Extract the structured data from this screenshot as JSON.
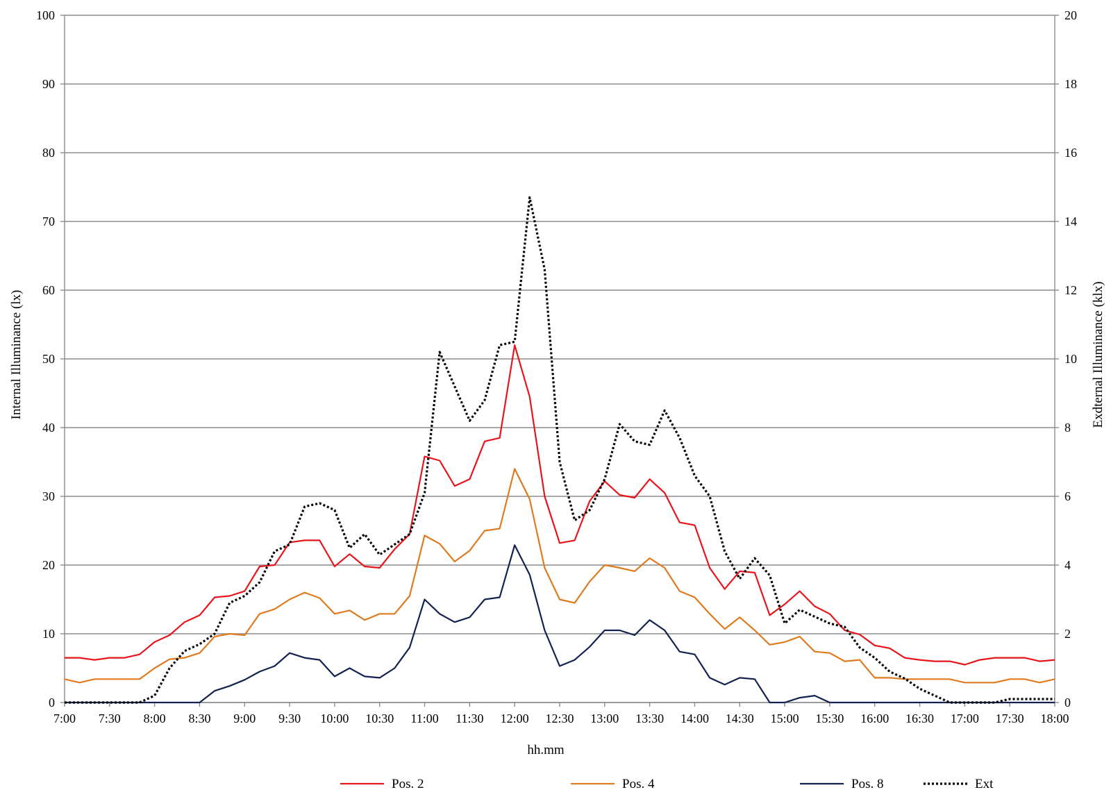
{
  "chart_data": {
    "type": "line",
    "title": "",
    "xlabel": "hh.mm",
    "ylabel": "Internal Illuminance (lx)",
    "y2label": "Exdternal Illuminance (klx)",
    "ylim": [
      0,
      100
    ],
    "y2lim": [
      0,
      20
    ],
    "yticks": [
      "0",
      "10",
      "20",
      "30",
      "40",
      "50",
      "60",
      "70",
      "80",
      "90",
      "100"
    ],
    "y2ticks": [
      "0",
      "2",
      "4",
      "6",
      "8",
      "10",
      "12",
      "14",
      "16",
      "18",
      "20"
    ],
    "x_tick_labels": [
      "7:00",
      "7:30",
      "8:00",
      "8:30",
      "9:00",
      "9:30",
      "10:00",
      "10:30",
      "11:00",
      "11:30",
      "12:00",
      "12:30",
      "13:00",
      "13:30",
      "14:00",
      "14:30",
      "15:00",
      "15:30",
      "16:00",
      "16:30",
      "17:00",
      "17:30",
      "18:00"
    ],
    "x": [
      "7:00",
      "7:10",
      "7:20",
      "7:30",
      "7:40",
      "7:50",
      "8:00",
      "8:10",
      "8:20",
      "8:30",
      "8:40",
      "8:50",
      "9:00",
      "9:10",
      "9:20",
      "9:30",
      "9:40",
      "9:50",
      "10:00",
      "10:10",
      "10:20",
      "10:30",
      "10:40",
      "10:50",
      "11:00",
      "11:10",
      "11:20",
      "11:30",
      "11:40",
      "11:50",
      "12:00",
      "12:10",
      "12:20",
      "12:30",
      "12:40",
      "12:50",
      "13:00",
      "13:10",
      "13:20",
      "13:30",
      "13:40",
      "13:50",
      "14:00",
      "14:10",
      "14:20",
      "14:30",
      "14:40",
      "14:50",
      "15:00",
      "15:10",
      "15:20",
      "15:30",
      "15:40",
      "15:50",
      "16:00",
      "16:10",
      "16:20",
      "16:30",
      "16:40",
      "16:50",
      "17:00",
      "17:10",
      "17:20",
      "17:30",
      "17:40",
      "17:50",
      "18:00"
    ],
    "grid": true,
    "legend_position": "bottom",
    "series": [
      {
        "name": "Pos. 2",
        "axis": "left",
        "color": "#e8141c",
        "style": "solid",
        "values": [
          6.5,
          6.5,
          6.2,
          6.5,
          6.5,
          7.0,
          8.8,
          9.8,
          11.7,
          12.7,
          15.3,
          15.5,
          16.2,
          19.8,
          20.0,
          23.3,
          23.6,
          23.6,
          19.8,
          21.6,
          19.8,
          19.6,
          22.3,
          24.5,
          35.8,
          35.2,
          31.5,
          32.5,
          38.0,
          38.5,
          52.0,
          44.5,
          30.0,
          23.2,
          23.6,
          29.3,
          32.2,
          30.2,
          29.8,
          32.5,
          30.5,
          26.2,
          25.8,
          19.6,
          16.5,
          19.1,
          18.9,
          12.7,
          14.3,
          16.2,
          14.0,
          12.9,
          10.5,
          9.9,
          8.3,
          7.9,
          6.5,
          6.2,
          6.0,
          6.0,
          5.5,
          6.2,
          6.5,
          6.5,
          6.5,
          6.0,
          6.2
        ]
      },
      {
        "name": "Pos. 4",
        "axis": "left",
        "color": "#e07a1f",
        "style": "solid",
        "values": [
          3.4,
          2.9,
          3.4,
          3.4,
          3.4,
          3.4,
          5.0,
          6.3,
          6.5,
          7.2,
          9.6,
          10.0,
          9.8,
          12.9,
          13.6,
          15.0,
          16.0,
          15.2,
          12.9,
          13.4,
          12.0,
          12.9,
          12.9,
          15.5,
          24.3,
          23.1,
          20.5,
          22.1,
          25.0,
          25.3,
          34.0,
          29.6,
          19.6,
          15.0,
          14.5,
          17.6,
          20.0,
          19.6,
          19.1,
          21.0,
          19.6,
          16.2,
          15.3,
          12.9,
          10.7,
          12.4,
          10.5,
          8.4,
          8.8,
          9.6,
          7.4,
          7.2,
          6.0,
          6.2,
          3.6,
          3.6,
          3.4,
          3.4,
          3.4,
          3.4,
          2.9,
          2.9,
          2.9,
          3.4,
          3.4,
          2.9,
          3.4
        ]
      },
      {
        "name": "Pos. 8",
        "axis": "left",
        "color": "#13214f",
        "style": "solid",
        "values": [
          0,
          0,
          0,
          0,
          0,
          0,
          0,
          0,
          0,
          0,
          1.7,
          2.4,
          3.3,
          4.5,
          5.3,
          7.2,
          6.5,
          6.2,
          3.8,
          5.0,
          3.8,
          3.6,
          5.0,
          8.0,
          15.0,
          12.9,
          11.7,
          12.4,
          15.0,
          15.3,
          22.9,
          18.6,
          10.5,
          5.3,
          6.2,
          8.1,
          10.5,
          10.5,
          9.8,
          12.0,
          10.5,
          7.4,
          7.0,
          3.6,
          2.6,
          3.6,
          3.4,
          0,
          0,
          0.7,
          1.0,
          0,
          0,
          0,
          0,
          0,
          0,
          0,
          0,
          0,
          0,
          0,
          0,
          0,
          0,
          0,
          0
        ]
      },
      {
        "name": "Ext",
        "axis": "right",
        "color": "#000000",
        "style": "dotted",
        "values": [
          0,
          0,
          0,
          0,
          0,
          0,
          0.2,
          1.0,
          1.5,
          1.7,
          2.0,
          2.9,
          3.1,
          3.5,
          4.4,
          4.6,
          5.7,
          5.8,
          5.6,
          4.5,
          4.9,
          4.3,
          4.6,
          4.9,
          6.1,
          10.2,
          9.2,
          8.2,
          8.8,
          10.4,
          10.5,
          14.7,
          12.6,
          7.0,
          5.3,
          5.6,
          6.5,
          8.1,
          7.6,
          7.5,
          8.5,
          7.7,
          6.6,
          6.0,
          4.4,
          3.6,
          4.2,
          3.7,
          2.3,
          2.7,
          2.5,
          2.3,
          2.2,
          1.6,
          1.3,
          0.9,
          0.7,
          0.4,
          0.2,
          0,
          0,
          0,
          0,
          0.1,
          0.1,
          0.1,
          0.1
        ]
      }
    ]
  }
}
